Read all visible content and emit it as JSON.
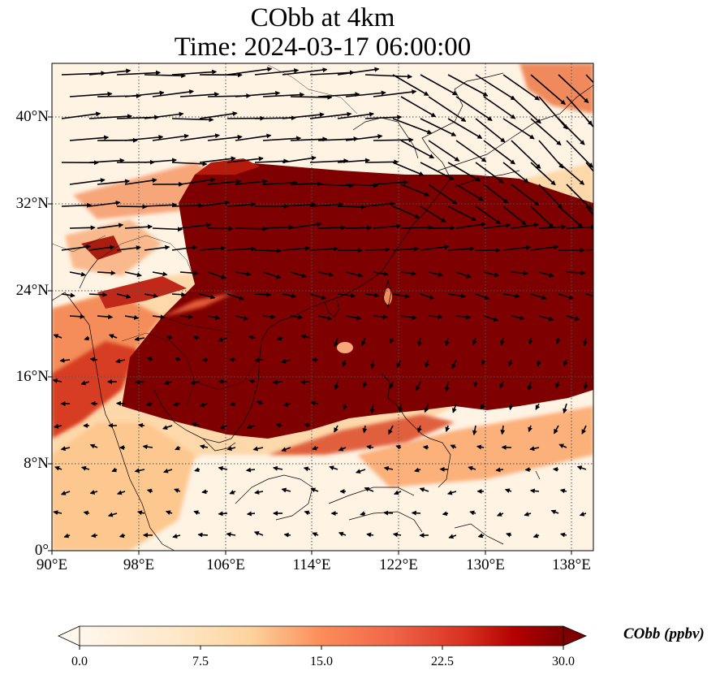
{
  "title": {
    "line1": "CObb at 4km",
    "line2": "Time: 2024-03-17 06:00:00"
  },
  "axes": {
    "y_ticks": [
      "0°",
      "8°N",
      "16°N",
      "24°N",
      "32°N",
      "40°N"
    ],
    "x_ticks": [
      "90°E",
      "98°E",
      "106°E",
      "114°E",
      "122°E",
      "130°E",
      "138°E"
    ]
  },
  "colorbar": {
    "label": "CObb (ppbv)",
    "ticks": [
      "0.0",
      "7.5",
      "15.0",
      "22.5",
      "30.0"
    ],
    "colormap": "OrRd",
    "colors": [
      "#fff7ec",
      "#fdd49e",
      "#fc8d59",
      "#d7301f",
      "#7f0000"
    ],
    "extend": "both"
  },
  "chart_data": {
    "type": "heatmap",
    "title": "CObb at 4km\nTime: 2024-03-17 06:00:00",
    "variable": "CObb",
    "units": "ppbv",
    "level": "4km",
    "time": "2024-03-17 06:00:00",
    "lon_range": [
      90,
      140
    ],
    "lat_range": [
      0,
      45
    ],
    "lon_ticks": [
      90,
      98,
      106,
      114,
      122,
      130,
      138
    ],
    "lat_ticks": [
      0,
      8,
      16,
      24,
      32,
      40
    ],
    "color_range": [
      0,
      30
    ],
    "overlays": [
      "coastlines",
      "country borders",
      "wind vectors",
      "dotted gridlines"
    ],
    "grid": true
  }
}
